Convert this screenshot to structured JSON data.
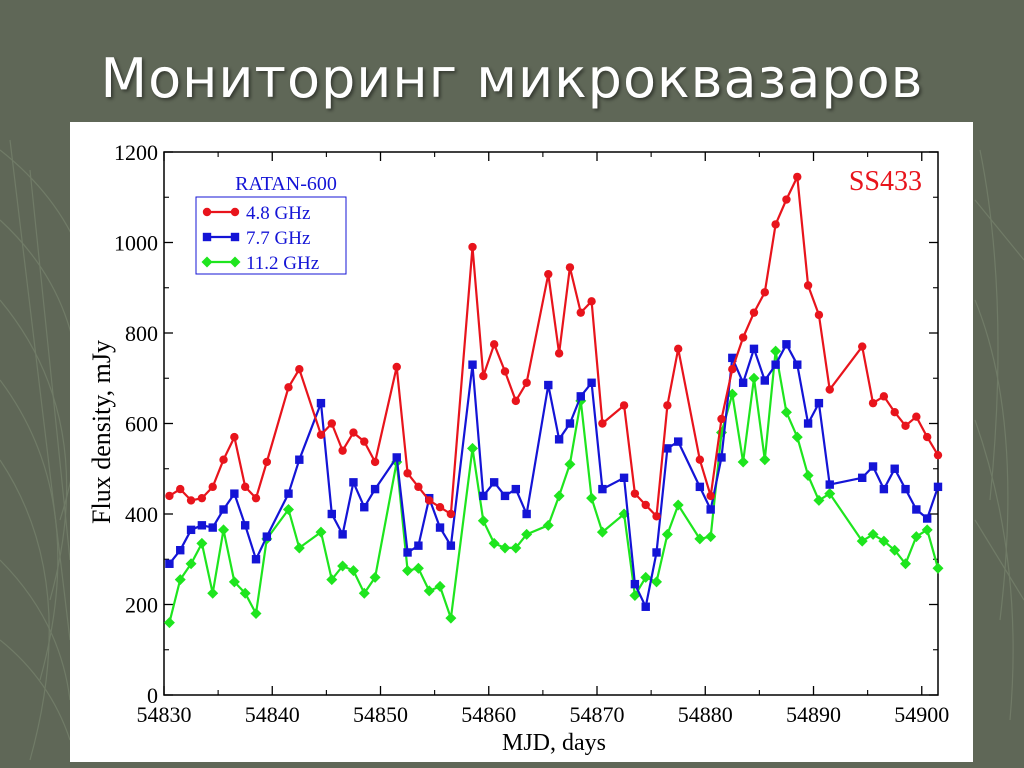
{
  "slide": {
    "title": "Мониторинг микроквазаров"
  },
  "chart_data": {
    "type": "line",
    "title": "",
    "source_label": "SS433",
    "legend_title": "RATAN-600",
    "legend_position": "top-left",
    "xlabel": "MJD, days",
    "ylabel": "Flux density, mJy",
    "xlim": [
      54830,
      54901.5
    ],
    "ylim": [
      0,
      1200
    ],
    "xticks": [
      54830,
      54840,
      54850,
      54860,
      54870,
      54880,
      54890,
      54900
    ],
    "yticks": [
      0,
      200,
      400,
      600,
      800,
      1000,
      1200
    ],
    "grid": false,
    "series": [
      {
        "name": "4.8 GHz",
        "color": "#e8141c",
        "marker": "circle",
        "x": [
          54830.5,
          54831.5,
          54832.5,
          54833.5,
          54834.5,
          54835.5,
          54836.5,
          54837.5,
          54838.5,
          54839.5,
          54841.5,
          54842.5,
          54844.5,
          54845.5,
          54846.5,
          54847.5,
          54848.5,
          54849.5,
          54851.5,
          54852.5,
          54853.5,
          54854.5,
          54855.5,
          54856.5,
          54858.5,
          54859.5,
          54860.5,
          54861.5,
          54862.5,
          54863.5,
          54865.5,
          54866.5,
          54867.5,
          54868.5,
          54869.5,
          54870.5,
          54872.5,
          54873.5,
          54874.5,
          54875.5,
          54876.5,
          54877.5,
          54879.5,
          54880.5,
          54881.5,
          54882.5,
          54883.5,
          54884.5,
          54885.5,
          54886.5,
          54887.5,
          54888.5,
          54889.5,
          54890.5,
          54891.5,
          54894.5,
          54895.5,
          54896.5,
          54897.5,
          54898.5,
          54899.5,
          54900.5,
          54901.5
        ],
        "values": [
          440,
          455,
          430,
          435,
          460,
          520,
          570,
          460,
          435,
          515,
          680,
          720,
          575,
          600,
          540,
          580,
          560,
          515,
          725,
          490,
          460,
          430,
          415,
          400,
          990,
          705,
          775,
          715,
          650,
          690,
          930,
          755,
          945,
          845,
          870,
          600,
          640,
          445,
          420,
          395,
          640,
          765,
          520,
          440,
          610,
          720,
          790,
          845,
          890,
          1040,
          1095,
          1145,
          905,
          840,
          675,
          770,
          645,
          660,
          625,
          595,
          615,
          570,
          530
        ]
      },
      {
        "name": "7.7 GHz",
        "color": "#1414d6",
        "marker": "square",
        "x": [
          54830.5,
          54831.5,
          54832.5,
          54833.5,
          54834.5,
          54835.5,
          54836.5,
          54837.5,
          54838.5,
          54839.5,
          54841.5,
          54842.5,
          54844.5,
          54845.5,
          54846.5,
          54847.5,
          54848.5,
          54849.5,
          54851.5,
          54852.5,
          54853.5,
          54854.5,
          54855.5,
          54856.5,
          54858.5,
          54859.5,
          54860.5,
          54861.5,
          54862.5,
          54863.5,
          54865.5,
          54866.5,
          54867.5,
          54868.5,
          54869.5,
          54870.5,
          54872.5,
          54873.5,
          54874.5,
          54875.5,
          54876.5,
          54877.5,
          54879.5,
          54880.5,
          54881.5,
          54882.5,
          54883.5,
          54884.5,
          54885.5,
          54886.5,
          54887.5,
          54888.5,
          54889.5,
          54890.5,
          54891.5,
          54894.5,
          54895.5,
          54896.5,
          54897.5,
          54898.5,
          54899.5,
          54900.5,
          54901.5
        ],
        "values": [
          290,
          320,
          365,
          375,
          370,
          410,
          445,
          375,
          300,
          350,
          445,
          520,
          645,
          400,
          355,
          470,
          415,
          455,
          525,
          315,
          330,
          435,
          370,
          330,
          730,
          440,
          470,
          440,
          455,
          400,
          685,
          565,
          600,
          660,
          690,
          455,
          480,
          245,
          195,
          315,
          545,
          560,
          460,
          410,
          525,
          745,
          690,
          765,
          695,
          730,
          775,
          730,
          600,
          645,
          465,
          480,
          505,
          455,
          500,
          455,
          410,
          390,
          460
        ]
      },
      {
        "name": "11.2 GHz",
        "color": "#1ee51e",
        "marker": "diamond",
        "x": [
          54830.5,
          54831.5,
          54832.5,
          54833.5,
          54834.5,
          54835.5,
          54836.5,
          54837.5,
          54838.5,
          54839.5,
          54841.5,
          54842.5,
          54844.5,
          54845.5,
          54846.5,
          54847.5,
          54848.5,
          54849.5,
          54851.5,
          54852.5,
          54853.5,
          54854.5,
          54855.5,
          54856.5,
          54858.5,
          54859.5,
          54860.5,
          54861.5,
          54862.5,
          54863.5,
          54865.5,
          54866.5,
          54867.5,
          54868.5,
          54869.5,
          54870.5,
          54872.5,
          54873.5,
          54874.5,
          54875.5,
          54876.5,
          54877.5,
          54879.5,
          54880.5,
          54881.5,
          54882.5,
          54883.5,
          54884.5,
          54885.5,
          54886.5,
          54887.5,
          54888.5,
          54889.5,
          54890.5,
          54891.5,
          54894.5,
          54895.5,
          54896.5,
          54897.5,
          54898.5,
          54899.5,
          54900.5,
          54901.5
        ],
        "values": [
          160,
          255,
          290,
          335,
          225,
          365,
          250,
          225,
          180,
          345,
          410,
          325,
          360,
          255,
          285,
          275,
          225,
          260,
          515,
          275,
          280,
          230,
          240,
          170,
          545,
          385,
          335,
          325,
          325,
          355,
          375,
          440,
          510,
          650,
          435,
          360,
          400,
          220,
          260,
          250,
          355,
          420,
          345,
          350,
          580,
          665,
          515,
          700,
          520,
          760,
          625,
          570,
          485,
          430,
          445,
          340,
          355,
          340,
          320,
          290,
          350,
          365,
          280
        ]
      }
    ]
  }
}
